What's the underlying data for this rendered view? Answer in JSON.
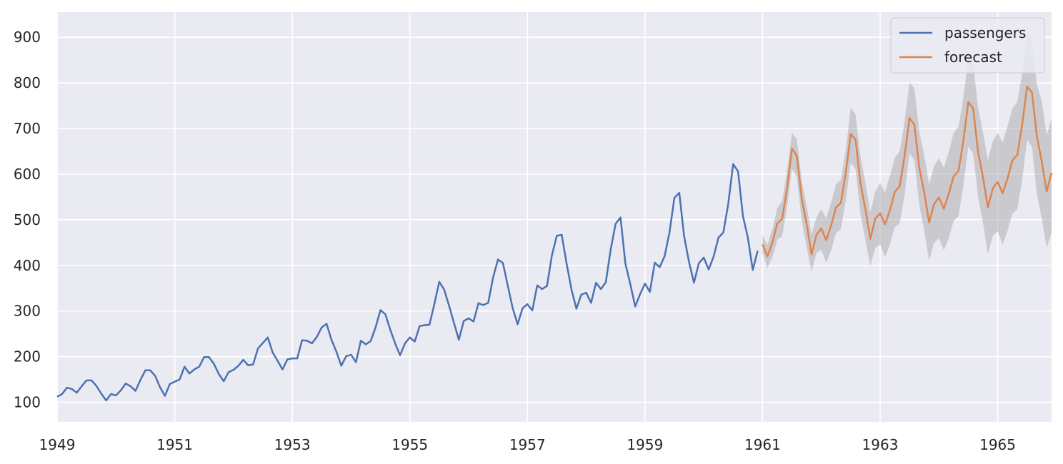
{
  "chart_data": {
    "type": "line",
    "title": "",
    "xlabel": "",
    "ylabel": "",
    "xlim": [
      "1949-01",
      "1965-12"
    ],
    "ylim": [
      57,
      955
    ],
    "x_ticks": [
      "1949",
      "1951",
      "1953",
      "1955",
      "1957",
      "1959",
      "1961",
      "1963",
      "1965"
    ],
    "y_ticks": [
      100,
      200,
      300,
      400,
      500,
      600,
      700,
      800,
      900
    ],
    "grid": true,
    "legend_position": "top-right",
    "colors": {
      "background": "#eaeaf2",
      "grid": "#ffffff",
      "passengers": "#4c72b0",
      "forecast": "#dd8452",
      "confidence_band": "#aaaaaa"
    },
    "series": [
      {
        "name": "passengers",
        "start": "1949-01",
        "frequency": "monthly",
        "values": [
          112,
          118,
          132,
          129,
          121,
          135,
          148,
          148,
          136,
          119,
          104,
          118,
          115,
          126,
          141,
          135,
          125,
          149,
          170,
          170,
          158,
          133,
          114,
          140,
          145,
          150,
          178,
          163,
          172,
          178,
          199,
          199,
          184,
          162,
          146,
          166,
          171,
          180,
          193,
          181,
          183,
          218,
          230,
          242,
          209,
          191,
          172,
          194,
          196,
          196,
          236,
          235,
          229,
          243,
          264,
          272,
          237,
          211,
          180,
          201,
          204,
          188,
          235,
          227,
          234,
          264,
          302,
          293,
          259,
          229,
          203,
          229,
          242,
          233,
          267,
          269,
          270,
          315,
          364,
          347,
          312,
          274,
          237,
          278,
          284,
          277,
          317,
          313,
          318,
          374,
          413,
          405,
          355,
          306,
          271,
          306,
          315,
          301,
          356,
          348,
          355,
          422,
          465,
          467,
          404,
          347,
          305,
          336,
          340,
          318,
          362,
          348,
          363,
          435,
          491,
          505,
          404,
          359,
          310,
          337,
          360,
          342,
          406,
          396,
          420,
          472,
          548,
          559,
          463,
          407,
          362,
          405,
          417,
          391,
          419,
          461,
          472,
          535,
          622,
          606,
          508,
          461,
          390,
          432
        ]
      },
      {
        "name": "forecast",
        "start": "1961-01",
        "frequency": "monthly",
        "values": [
          446,
          420,
          450,
          492,
          502,
          568,
          656,
          640,
          546,
          491,
          424,
          467,
          481,
          455,
          488,
          527,
          537,
          604,
          688,
          675,
          578,
          523,
          458,
          502,
          514,
          490,
          521,
          561,
          574,
          640,
          723,
          708,
          614,
          560,
          494,
          534,
          549,
          524,
          556,
          595,
          607,
          674,
          758,
          744,
          648,
          593,
          527,
          569,
          583,
          558,
          590,
          630,
          642,
          708,
          792,
          779,
          683,
          627,
          562,
          603
        ],
        "lower": [
          427,
          394,
          418,
          456,
          464,
          526,
          612,
          594,
          498,
          441,
          386,
          427,
          434,
          405,
          433,
          470,
          480,
          542,
          625,
          610,
          512,
          455,
          399,
          438,
          446,
          418,
          445,
          484,
          492,
          555,
          645,
          630,
          532,
          476,
          410,
          449,
          459,
          433,
          459,
          497,
          508,
          575,
          660,
          645,
          550,
          493,
          424,
          465,
          475,
          445,
          475,
          513,
          523,
          588,
          675,
          660,
          555,
          503,
          438,
          472
        ],
        "upper": [
          467,
          445,
          480,
          525,
          541,
          607,
          690,
          677,
          585,
          531,
          468,
          505,
          523,
          503,
          538,
          578,
          588,
          652,
          746,
          731,
          637,
          582,
          516,
          561,
          581,
          560,
          596,
          636,
          650,
          716,
          801,
          788,
          693,
          642,
          577,
          617,
          635,
          614,
          648,
          690,
          704,
          768,
          855,
          843,
          745,
          692,
          631,
          672,
          691,
          669,
          705,
          744,
          758,
          821,
          910,
          895,
          795,
          760,
          685,
          722
        ]
      }
    ]
  }
}
